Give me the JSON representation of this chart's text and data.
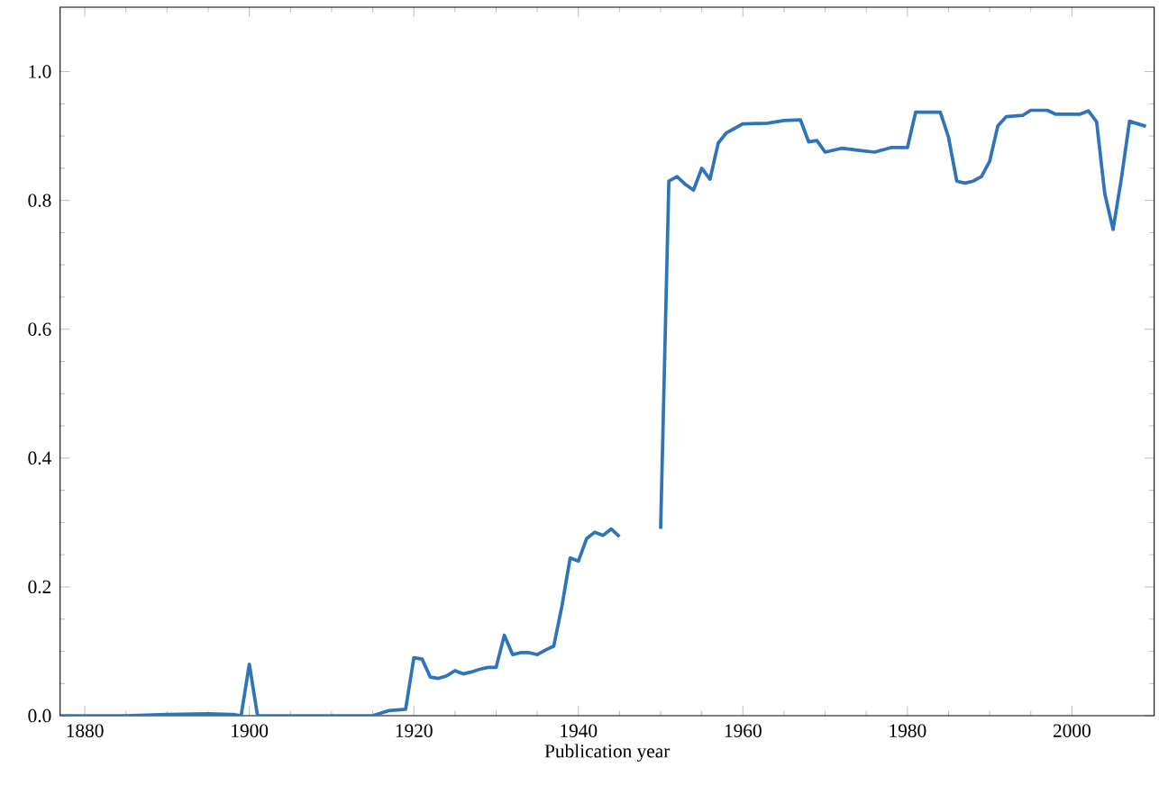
{
  "chart_data": {
    "type": "line",
    "xlabel": "Publication year",
    "color": "#2f74b8",
    "x": [
      1877,
      1880,
      1885,
      1890,
      1895,
      1898,
      1899,
      1900,
      1901,
      1902,
      1905,
      1910,
      1915,
      1917,
      1919,
      1920,
      1921,
      1922,
      1923,
      1924,
      1925,
      1926,
      1927,
      1928,
      1929,
      1930,
      1931,
      1932,
      1933,
      1934,
      1935,
      1936,
      1937,
      1938,
      1939,
      1940,
      1941,
      1942,
      1943,
      1944,
      1945,
      1947,
      1950,
      1951,
      1952,
      1953,
      1954,
      1955,
      1956,
      1957,
      1958,
      1960,
      1963,
      1965,
      1967,
      1968,
      1969,
      1970,
      1972,
      1974,
      1976,
      1978,
      1980,
      1981,
      1984,
      1985,
      1986,
      1987,
      1988,
      1989,
      1990,
      1991,
      1992,
      1994,
      1995,
      1997,
      1998,
      2001,
      2002,
      2003,
      2004,
      2005,
      2006,
      2007,
      2009
    ],
    "values": [
      0.0,
      0.0,
      0.0,
      0.002,
      0.003,
      0.002,
      0.0,
      0.08,
      0.0,
      0.0,
      0.0,
      0.0,
      0.0,
      0.008,
      0.01,
      0.09,
      0.088,
      0.06,
      0.058,
      0.062,
      0.07,
      0.065,
      0.068,
      0.072,
      0.075,
      0.075,
      0.125,
      0.095,
      0.098,
      0.098,
      0.095,
      0.102,
      0.108,
      0.17,
      0.245,
      0.24,
      0.275,
      0.285,
      0.28,
      0.29,
      0.278,
      null,
      0.29,
      0.83,
      0.837,
      0.825,
      0.816,
      0.85,
      0.833,
      0.889,
      0.905,
      0.919,
      0.92,
      0.924,
      0.925,
      0.891,
      0.893,
      0.875,
      0.881,
      0.878,
      0.875,
      0.882,
      0.882,
      0.937,
      0.937,
      0.898,
      0.83,
      0.827,
      0.83,
      0.837,
      0.861,
      0.916,
      0.93,
      0.932,
      0.94,
      0.94,
      0.934,
      0.934,
      0.939,
      0.922,
      0.81,
      0.755,
      0.833,
      0.923,
      0.915
    ],
    "xlim": [
      1877,
      2010
    ],
    "ylim": [
      0,
      1.1
    ],
    "xticks": [
      1880,
      1900,
      1920,
      1940,
      1960,
      1980,
      2000
    ],
    "yticks": [
      {
        "value": 0,
        "label": "0.0"
      },
      {
        "value": 0.2,
        "label": "0.2"
      },
      {
        "value": 0.4,
        "label": "0.4"
      },
      {
        "value": 0.6,
        "label": "0.6"
      },
      {
        "value": 0.8,
        "label": "0.8"
      },
      {
        "value": 1.0,
        "label": "1.0"
      }
    ]
  }
}
